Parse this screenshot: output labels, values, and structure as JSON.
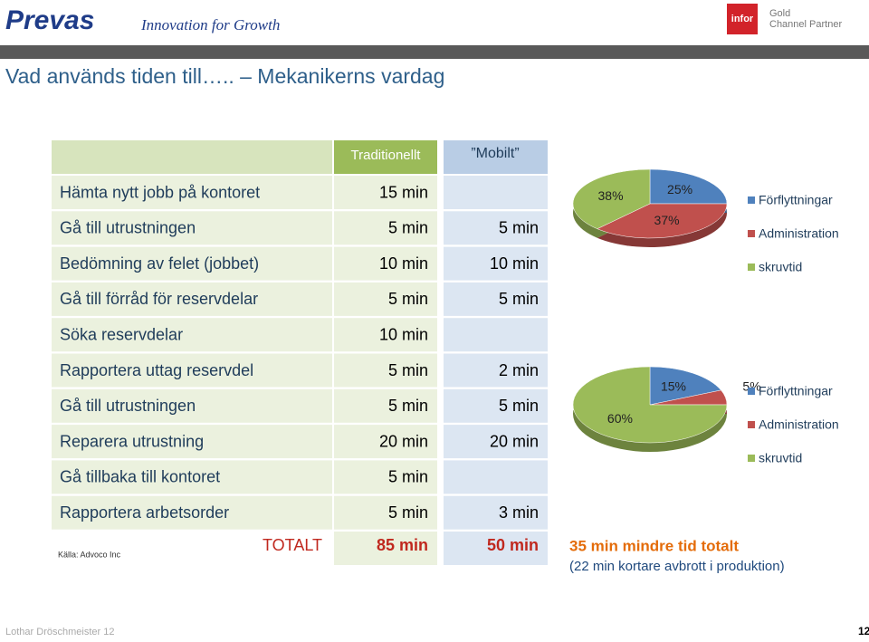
{
  "header": {
    "logo": "Prevas",
    "tagline": "Innovation for Growth",
    "partner_logo": "infor",
    "partner_text": [
      "Gold",
      "Channel Partner"
    ]
  },
  "title": "Vad används tiden till….. – Mekanikerns vardag",
  "table": {
    "headers": [
      "Traditionellt",
      "”Mobilt”"
    ],
    "rows": [
      [
        "Hämta nytt jobb på kontoret",
        "15 min",
        null
      ],
      [
        "Gå till utrustningen",
        "5 min",
        "5 min"
      ],
      [
        "Bedömning av felet (jobbet)",
        "10 min",
        "10 min"
      ],
      [
        "Gå till förråd för reservdelar",
        "5 min",
        "5 min"
      ],
      [
        "Söka reservdelar",
        "10 min",
        null
      ],
      [
        "Rapportera uttag reservdel",
        "5 min",
        "2 min"
      ],
      [
        "Gå till utrustningen",
        "5 min",
        "5 min"
      ],
      [
        "Reparera utrustning",
        "20 min",
        "20 min"
      ],
      [
        "Gå tillbaka till kontoret",
        "5 min",
        null
      ],
      [
        "Rapportera arbetsorder",
        "5 min",
        "3 min"
      ]
    ],
    "total": [
      "TOTALT",
      "85 min",
      "50 min"
    ]
  },
  "source": "Källa: Advoco Inc",
  "chart_data": [
    {
      "type": "pie",
      "categories": [
        "Förflyttningar",
        "Administration",
        "skruvtid"
      ],
      "values": [
        25,
        37,
        38
      ],
      "value_labels": [
        "25%",
        "37%",
        "38%"
      ],
      "colors": [
        "#4f81bd",
        "#c0504d",
        "#9bbb59"
      ],
      "legend": "right"
    },
    {
      "type": "pie",
      "categories": [
        "Förflyttningar",
        "Administration",
        "skruvtid"
      ],
      "values": [
        15,
        5,
        60
      ],
      "value_labels": [
        "15%",
        "5%",
        "60%"
      ],
      "colors": [
        "#4f81bd",
        "#c0504d",
        "#9bbb59"
      ],
      "legend": "right"
    }
  ],
  "callout": {
    "headline": "35 min mindre tid totalt",
    "note": "(22 min kortare avbrott i produktion)"
  },
  "footer": {
    "author": "Lothar Dröschmeister 12",
    "page": "12"
  }
}
